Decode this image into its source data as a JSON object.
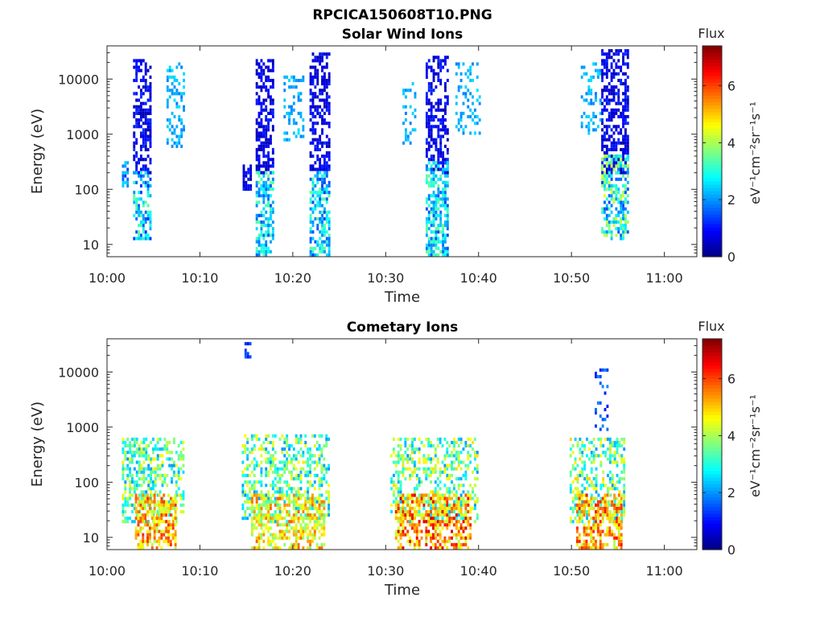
{
  "figure": {
    "title": "RPCICA150608T10.PNG"
  },
  "colorbar": {
    "label": "Flux",
    "unit_label": "eV⁻¹cm⁻²sr⁻¹s⁻¹",
    "ticks": [
      "0",
      "2",
      "4",
      "6"
    ],
    "range": [
      0,
      7.4
    ],
    "colormap": "jet"
  },
  "chart_data": [
    {
      "type": "heatmap",
      "title": "Solar Wind Ions",
      "xlabel": "Time",
      "ylabel": "Energy (eV)",
      "x_tick_labels": [
        "10:00",
        "10:10",
        "10:20",
        "10:30",
        "10:40",
        "10:50",
        "11:00"
      ],
      "x_range_minutes": [
        0,
        63.5
      ],
      "y_tick_labels": [
        "10",
        "100",
        "1000",
        "10000"
      ],
      "y_scale": "log",
      "y_range": [
        6,
        40000
      ],
      "color_range": [
        0,
        7.4
      ],
      "bursts": [
        {
          "t0": 1.6,
          "t1": 2.2,
          "emin": 100,
          "emax": 300,
          "fmin": 1.2,
          "fmax": 2.8,
          "density": 0.6
        },
        {
          "t0": 2.8,
          "t1": 4.8,
          "emin": 200,
          "emax": 22000,
          "fmin": 0.3,
          "fmax": 1.3,
          "density": 0.55
        },
        {
          "t0": 2.8,
          "t1": 4.8,
          "emin": 12,
          "emax": 200,
          "fmin": 1.2,
          "fmax": 3.5,
          "density": 0.55
        },
        {
          "t0": 6.4,
          "t1": 8.3,
          "emin": 600,
          "emax": 18000,
          "fmin": 1.8,
          "fmax": 2.6,
          "density": 0.35
        },
        {
          "t0": 14.6,
          "t1": 15.5,
          "emin": 100,
          "emax": 250,
          "fmin": 0.3,
          "fmax": 1.2,
          "density": 0.5
        },
        {
          "t0": 16.0,
          "t1": 17.8,
          "emin": 200,
          "emax": 23000,
          "fmin": 0.3,
          "fmax": 1.2,
          "density": 0.55
        },
        {
          "t0": 16.0,
          "t1": 17.8,
          "emin": 6,
          "emax": 200,
          "fmin": 1.5,
          "fmax": 3.6,
          "density": 0.6
        },
        {
          "t0": 19.0,
          "t1": 21.2,
          "emin": 700,
          "emax": 11000,
          "fmin": 1.8,
          "fmax": 2.6,
          "density": 0.3
        },
        {
          "t0": 21.8,
          "t1": 24.0,
          "emin": 200,
          "emax": 30000,
          "fmin": 0.3,
          "fmax": 1.3,
          "density": 0.55
        },
        {
          "t0": 21.8,
          "t1": 24.0,
          "emin": 6,
          "emax": 200,
          "fmin": 1.3,
          "fmax": 3.6,
          "density": 0.6
        },
        {
          "t0": 31.8,
          "t1": 33.2,
          "emin": 700,
          "emax": 8000,
          "fmin": 1.8,
          "fmax": 2.6,
          "density": 0.3
        },
        {
          "t0": 34.3,
          "t1": 36.8,
          "emin": 200,
          "emax": 25000,
          "fmin": 0.3,
          "fmax": 1.3,
          "density": 0.55
        },
        {
          "t0": 34.3,
          "t1": 36.8,
          "emin": 6,
          "emax": 300,
          "fmin": 1.4,
          "fmax": 3.6,
          "density": 0.6
        },
        {
          "t0": 37.5,
          "t1": 40.2,
          "emin": 1000,
          "emax": 18000,
          "fmin": 1.8,
          "fmax": 2.6,
          "density": 0.3
        },
        {
          "t0": 51.0,
          "t1": 53.2,
          "emin": 1000,
          "emax": 18000,
          "fmin": 1.8,
          "fmax": 2.6,
          "density": 0.3
        },
        {
          "t0": 53.2,
          "t1": 56.0,
          "emin": 200,
          "emax": 32000,
          "fmin": 0.3,
          "fmax": 1.3,
          "density": 0.55
        },
        {
          "t0": 53.2,
          "t1": 56.0,
          "emin": 12,
          "emax": 400,
          "fmin": 1.4,
          "fmax": 4.5,
          "density": 0.6
        }
      ]
    },
    {
      "type": "heatmap",
      "title": "Cometary Ions",
      "xlabel": "Time",
      "ylabel": "Energy (eV)",
      "x_tick_labels": [
        "10:00",
        "10:10",
        "10:20",
        "10:30",
        "10:40",
        "10:50",
        "11:00"
      ],
      "x_range_minutes": [
        0,
        63.5
      ],
      "y_tick_labels": [
        "10",
        "100",
        "1000",
        "10000"
      ],
      "y_scale": "log",
      "y_range": [
        6,
        40000
      ],
      "color_range": [
        0,
        7.4
      ],
      "bursts": [
        {
          "t0": 1.6,
          "t1": 8.2,
          "emin": 20,
          "emax": 600,
          "fmin": 2.0,
          "fmax": 4.8,
          "density": 0.45
        },
        {
          "t0": 3.0,
          "t1": 7.5,
          "emin": 6,
          "emax": 60,
          "fmin": 4.0,
          "fmax": 6.2,
          "density": 0.6
        },
        {
          "t0": 14.5,
          "t1": 24.0,
          "emin": 20,
          "emax": 700,
          "fmin": 2.0,
          "fmax": 4.8,
          "density": 0.45
        },
        {
          "t0": 15.5,
          "t1": 23.5,
          "emin": 6,
          "emax": 60,
          "fmin": 3.5,
          "fmax": 5.8,
          "density": 0.55
        },
        {
          "t0": 30.5,
          "t1": 39.8,
          "emin": 20,
          "emax": 600,
          "fmin": 2.0,
          "fmax": 5.0,
          "density": 0.45
        },
        {
          "t0": 31.0,
          "t1": 39.2,
          "emin": 6,
          "emax": 60,
          "fmin": 4.0,
          "fmax": 6.8,
          "density": 0.6
        },
        {
          "t0": 49.8,
          "t1": 55.8,
          "emin": 20,
          "emax": 600,
          "fmin": 2.0,
          "fmax": 5.0,
          "density": 0.45
        },
        {
          "t0": 50.5,
          "t1": 55.5,
          "emin": 6,
          "emax": 60,
          "fmin": 4.0,
          "fmax": 6.5,
          "density": 0.6
        },
        {
          "t0": 14.8,
          "t1": 15.4,
          "emin": 18000,
          "emax": 32000,
          "fmin": 1.0,
          "fmax": 1.6,
          "density": 0.5
        },
        {
          "t0": 52.5,
          "t1": 53.8,
          "emin": 900,
          "emax": 11000,
          "fmin": 1.0,
          "fmax": 2.0,
          "density": 0.25
        }
      ]
    }
  ]
}
